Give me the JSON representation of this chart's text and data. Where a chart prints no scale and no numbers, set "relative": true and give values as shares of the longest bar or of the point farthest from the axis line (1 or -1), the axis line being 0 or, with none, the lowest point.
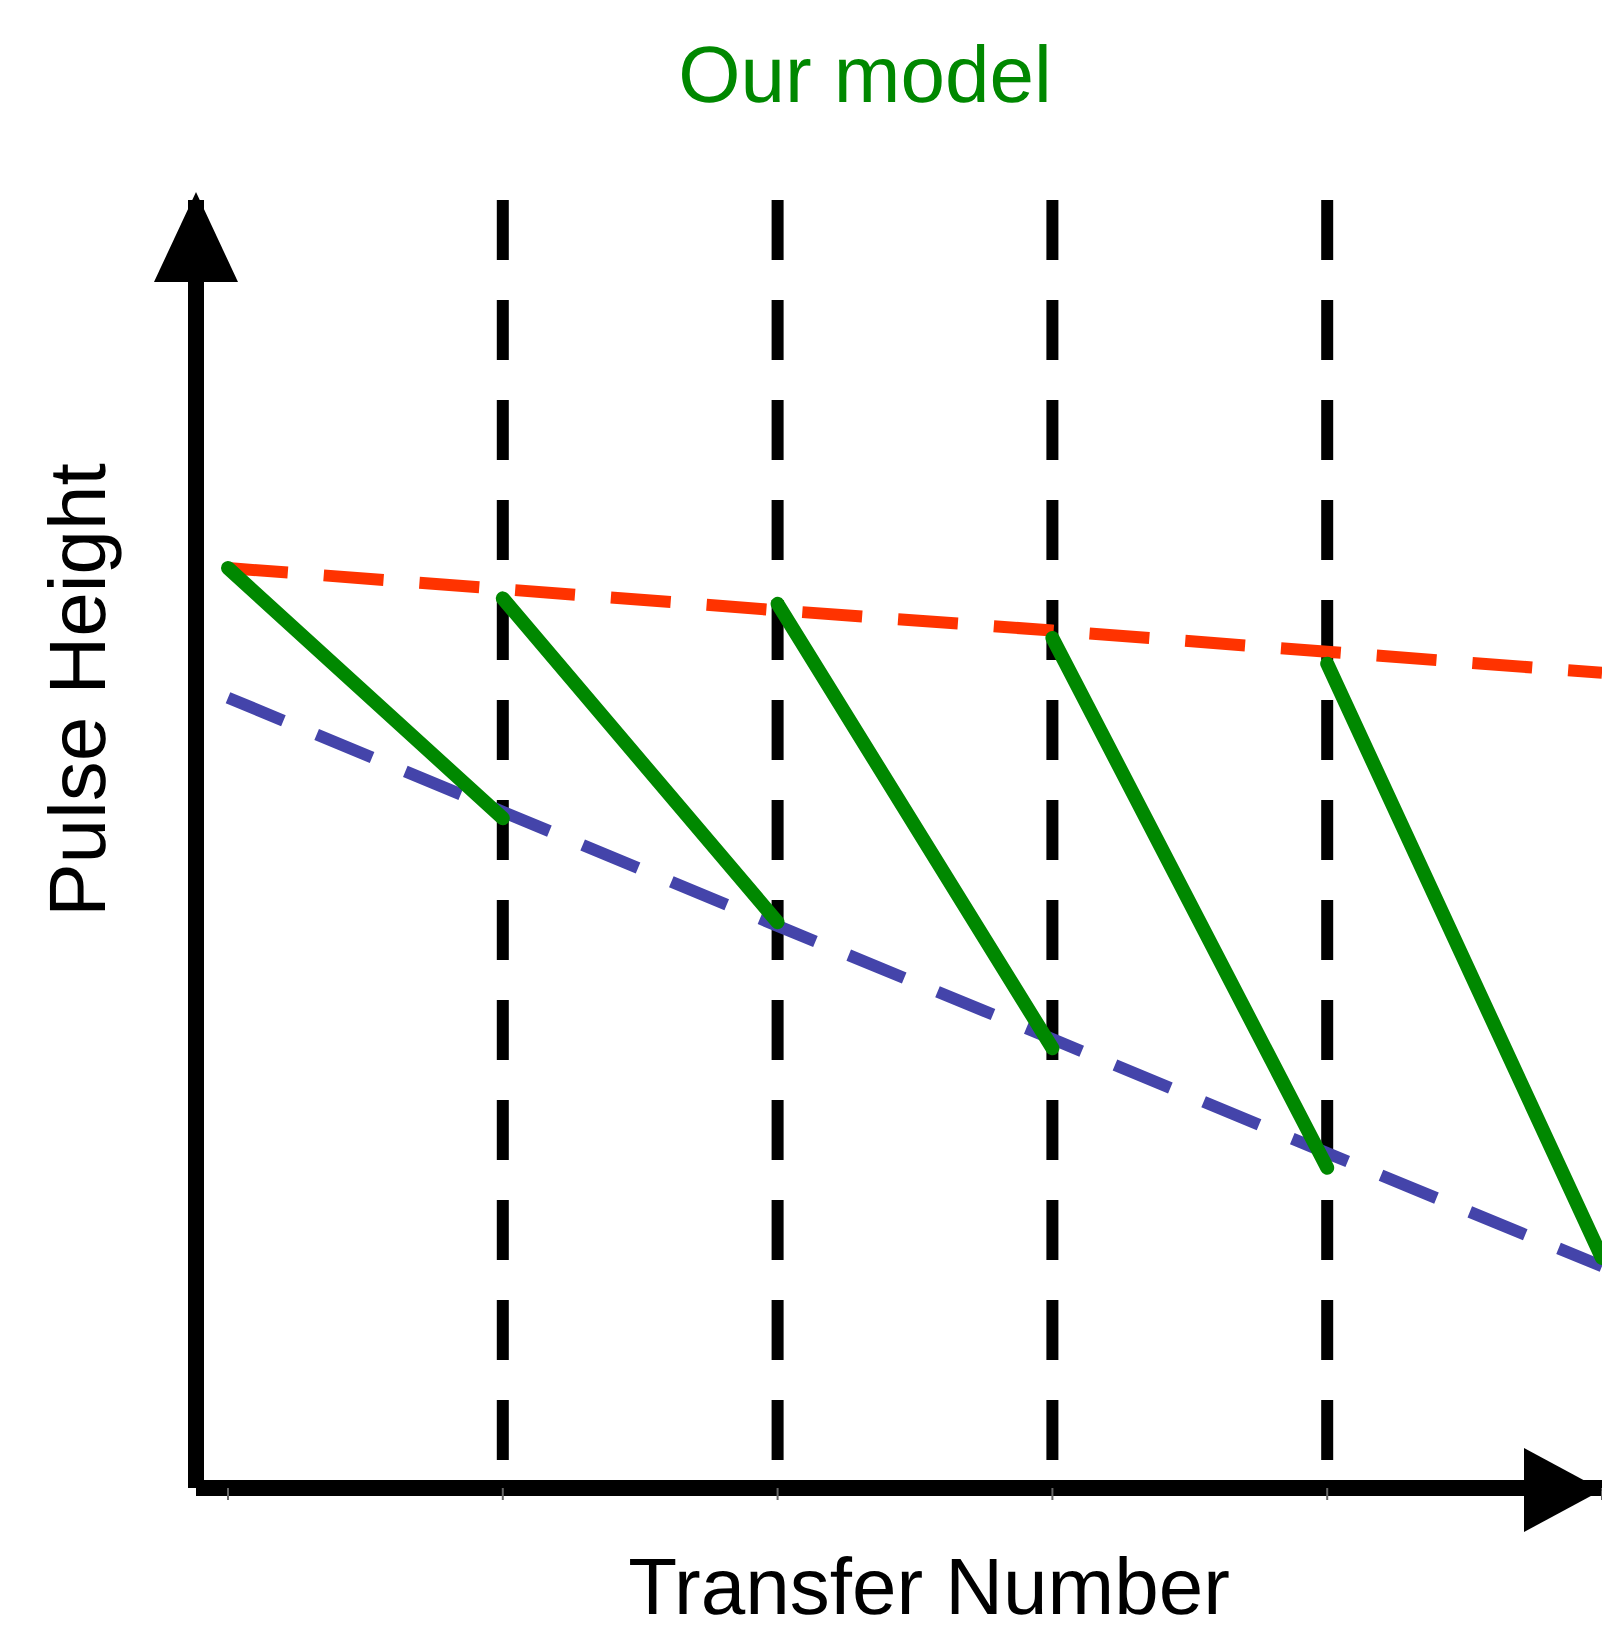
{
  "chart_data": {
    "type": "line",
    "title": "Our model",
    "xlabel": "Transfer Number",
    "ylabel": "Pulse Height",
    "relative": true,
    "categories": [
      null,
      null,
      null,
      null,
      null,
      null
    ],
    "marker": "none",
    "legend": false,
    "grid": "x",
    "series": [
      {
        "color": "#ff3300",
        "line_style": "dashed",
        "values": [
          1.0,
          0.977,
          0.954,
          0.932,
          0.909,
          0.886
        ]
      },
      {
        "color": "#4444aa",
        "line_style": "dashed",
        "values": [
          0.859,
          0.735,
          0.611,
          0.488,
          0.364,
          0.241
        ]
      },
      {
        "color": "#008800",
        "line_style": "solid",
        "values": [
          1.0,
          0.728,
          null,
          null,
          null,
          null
        ]
      },
      {
        "color": "#008800",
        "line_style": "solid",
        "values": [
          null,
          0.967,
          0.615,
          null,
          null,
          null
        ]
      },
      {
        "color": "#008800",
        "line_style": "solid",
        "values": [
          null,
          null,
          0.961,
          0.478,
          null,
          null
        ]
      },
      {
        "color": "#008800",
        "line_style": "solid",
        "values": [
          null,
          null,
          null,
          0.924,
          0.348,
          null
        ]
      },
      {
        "color": "#008800",
        "line_style": "solid",
        "values": [
          null,
          null,
          null,
          null,
          0.896,
          0.25
        ]
      }
    ]
  }
}
